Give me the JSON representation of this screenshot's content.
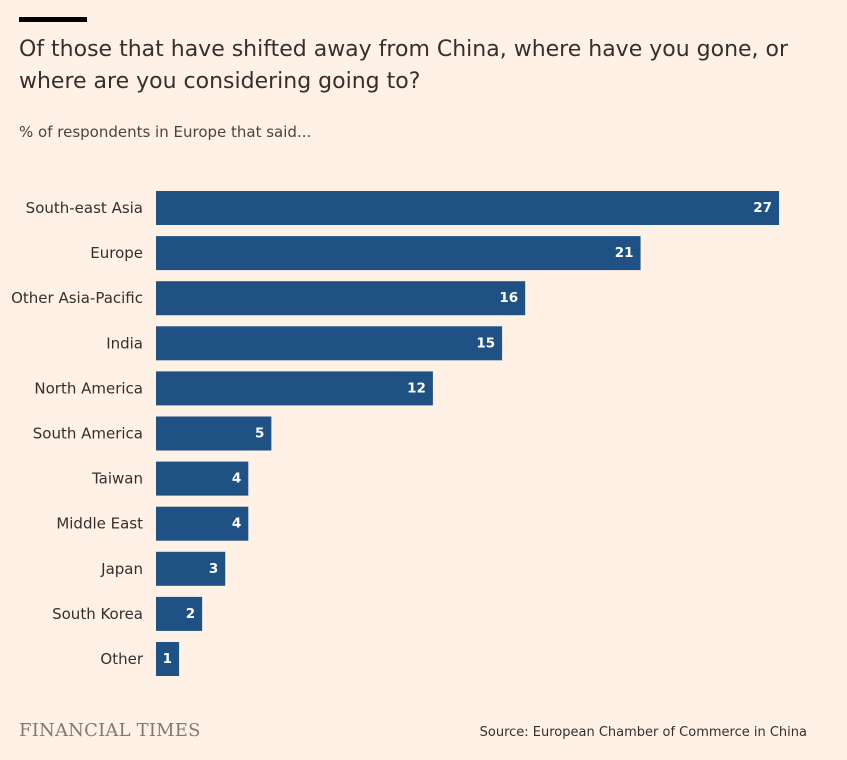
{
  "header": {
    "title": "Of those that have shifted away from China, where have you gone, or where are you considering going to?",
    "subtitle": "% of respondents in Europe that said..."
  },
  "footer": {
    "brand": "FINANCIAL TIMES",
    "source": "Source: European Chamber of Commerce in China"
  },
  "colors": {
    "background": "#fff1e5",
    "bar": "#1f5185",
    "bar_label": "#ffffff",
    "text": "#33302e"
  },
  "chart_data": {
    "type": "bar",
    "orientation": "horizontal",
    "title": "Of those that have shifted away from China, where have you gone, or where are you considering going to?",
    "subtitle": "% of respondents in Europe that said...",
    "categories": [
      "South-east Asia",
      "Europe",
      "Other Asia-Pacific",
      "India",
      "North America",
      "South America",
      "Taiwan",
      "Middle East",
      "Japan",
      "South Korea",
      "Other"
    ],
    "values": [
      27,
      21,
      16,
      15,
      12,
      5,
      4,
      4,
      3,
      2,
      1
    ],
    "xlim": [
      0,
      27
    ],
    "grid": false,
    "data_labels": true
  }
}
